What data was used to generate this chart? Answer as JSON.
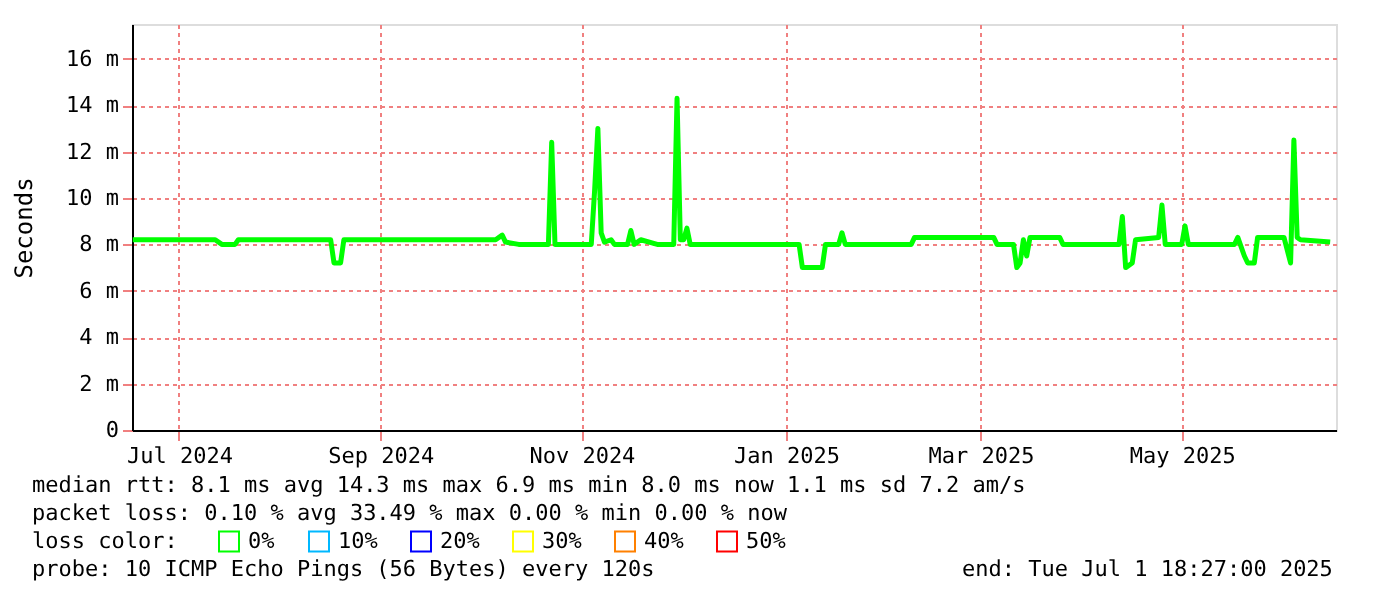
{
  "chart_data": {
    "type": "line",
    "ylabel": "Seconds",
    "legend_title": "loss color:",
    "legend": "bottom",
    "grid": true,
    "line_style": "solid",
    "marker": "none",
    "xlim": [
      "2024-07-01T18:27",
      "2025-07-01T18:27"
    ],
    "xticks": [
      {
        "value": "2024-07-16",
        "label": "Jul 2024"
      },
      {
        "value": "2024-09-15",
        "label": "Sep 2024"
      },
      {
        "value": "2024-11-15",
        "label": "Nov 2024"
      },
      {
        "value": "2025-01-16",
        "label": "Jan 2025"
      },
      {
        "value": "2025-03-16",
        "label": "Mar 2025"
      },
      {
        "value": "2025-05-16",
        "label": "May 2025"
      }
    ],
    "ylim": [
      0,
      17.5
    ],
    "yticks": [
      0,
      {
        "value": 2,
        "label": "2 m"
      },
      {
        "value": 4,
        "label": "4 m"
      },
      {
        "value": 6,
        "label": "6 m"
      },
      {
        "value": 8,
        "label": "8 m"
      },
      {
        "value": 10,
        "label": "10 m"
      },
      {
        "value": 12,
        "label": "12 m"
      },
      {
        "value": 14,
        "label": "14 m"
      },
      {
        "value": 16,
        "label": "16 m"
      }
    ],
    "series": [
      {
        "name": "0%",
        "color": "#00ff00",
        "x": [
          "2024-07-02",
          "2024-07-27",
          "2024-07-29",
          "2024-08-02",
          "2024-08-03",
          "2024-08-31",
          "2024-09-01",
          "2024-09-03",
          "2024-09-04",
          "2024-10-20",
          "2024-10-22",
          "2024-10-23",
          "2024-10-27",
          "2024-11-05",
          "2024-11-06",
          "2024-11-07",
          "2024-11-18",
          "2024-11-19",
          "2024-11-20",
          "2024-11-21",
          "2024-11-22",
          "2024-11-24",
          "2024-11-25",
          "2024-11-29",
          "2024-11-30",
          "2024-12-01",
          "2024-12-03",
          "2024-12-08",
          "2024-12-13",
          "2024-12-14",
          "2024-12-15",
          "2024-12-16",
          "2024-12-17",
          "2024-12-18",
          "2025-01-20",
          "2025-01-21",
          "2025-01-27",
          "2025-01-28",
          "2025-02-01",
          "2025-02-02",
          "2025-02-03",
          "2025-02-23",
          "2025-02-24",
          "2025-03-20",
          "2025-03-21",
          "2025-03-26",
          "2025-03-27",
          "2025-03-28",
          "2025-03-29",
          "2025-03-30",
          "2025-03-31",
          "2025-04-09",
          "2025-04-10",
          "2025-04-27",
          "2025-04-28",
          "2025-04-29",
          "2025-05-01",
          "2025-05-02",
          "2025-05-09",
          "2025-05-10",
          "2025-05-11",
          "2025-05-16",
          "2025-05-17",
          "2025-05-18",
          "2025-06-01",
          "2025-06-02",
          "2025-06-04",
          "2025-06-05",
          "2025-06-07",
          "2025-06-08",
          "2025-06-16",
          "2025-06-18",
          "2025-06-19",
          "2025-06-20",
          "2025-06-21",
          "2025-06-30"
        ],
        "values": [
          8.2,
          8.2,
          8.0,
          8.0,
          8.2,
          8.2,
          7.2,
          7.2,
          8.2,
          8.2,
          8.4,
          8.1,
          8.0,
          8.0,
          12.4,
          8.0,
          8.0,
          10.3,
          13.0,
          8.5,
          8.1,
          8.2,
          8.0,
          8.0,
          8.6,
          8.0,
          8.2,
          8.0,
          8.0,
          14.3,
          8.2,
          8.2,
          8.7,
          8.0,
          8.0,
          7.0,
          7.0,
          8.0,
          8.0,
          8.5,
          8.0,
          8.0,
          8.3,
          8.3,
          8.0,
          8.0,
          7.0,
          7.2,
          8.2,
          7.5,
          8.3,
          8.3,
          8.0,
          8.0,
          9.2,
          7.0,
          7.2,
          8.2,
          8.3,
          9.7,
          8.0,
          8.0,
          8.8,
          8.0,
          8.0,
          8.3,
          7.5,
          7.2,
          7.2,
          8.3,
          8.3,
          7.2,
          12.5,
          8.3,
          8.2,
          8.1
        ]
      },
      {
        "name": "10%",
        "color": "#00b8ff"
      },
      {
        "name": "20%",
        "color": "#0000ff"
      },
      {
        "name": "30%",
        "color": "#ffff00"
      },
      {
        "name": "40%",
        "color": "#ff8000"
      },
      {
        "name": "50%",
        "color": "#ff0000"
      }
    ],
    "annotations": [
      "median rtt:  8.1 ms avg  14.3 ms max  6.9 ms min  8.0 ms now  1.1 ms sd  7.2   am/s",
      "packet loss: 0.10 % avg  33.49 % max  0.00 % min  0.00 % now",
      "probe:       10 ICMP Echo Pings (56 Bytes) every 120s",
      "end: Tue Jul  1 18:27:00 2025"
    ]
  }
}
